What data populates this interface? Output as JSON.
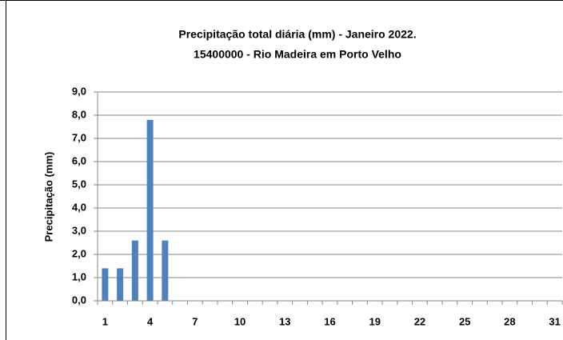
{
  "chart_data": {
    "type": "bar",
    "title": "Precipitação total diária (mm) - Janeiro 2022.",
    "subtitle": "15400000  - Rio Madeira em Porto Velho",
    "y_label": "Precipitação (mm)",
    "categories": [
      1,
      null,
      null,
      4,
      null,
      null,
      7,
      null,
      null,
      10,
      null,
      null,
      13,
      null,
      null,
      16,
      null,
      null,
      19,
      null,
      null,
      22,
      null,
      null,
      25,
      null,
      null,
      28,
      null,
      null,
      31
    ],
    "values": [
      1.4,
      1.4,
      2.6,
      7.8,
      2.6,
      0,
      0,
      0,
      0,
      0,
      0,
      0,
      0,
      0,
      0,
      0,
      0,
      0,
      0,
      0,
      0,
      0,
      0,
      0,
      0,
      0,
      0,
      0,
      0,
      0,
      0
    ],
    "color": "#4f81bd",
    "ylim": [
      0,
      9
    ],
    "yticks": [
      {
        "value": 0,
        "label": "0,0"
      },
      {
        "value": 1,
        "label": "1,0"
      },
      {
        "value": 2,
        "label": "2,0"
      },
      {
        "value": 3,
        "label": "3,0"
      },
      {
        "value": 4,
        "label": "4,0"
      },
      {
        "value": 5,
        "label": "5,0"
      },
      {
        "value": 6,
        "label": "6,0"
      },
      {
        "value": 7,
        "label": "7,0"
      },
      {
        "value": 8,
        "label": "8,0"
      },
      {
        "value": 9,
        "label": "9,0"
      }
    ],
    "grid": true
  }
}
